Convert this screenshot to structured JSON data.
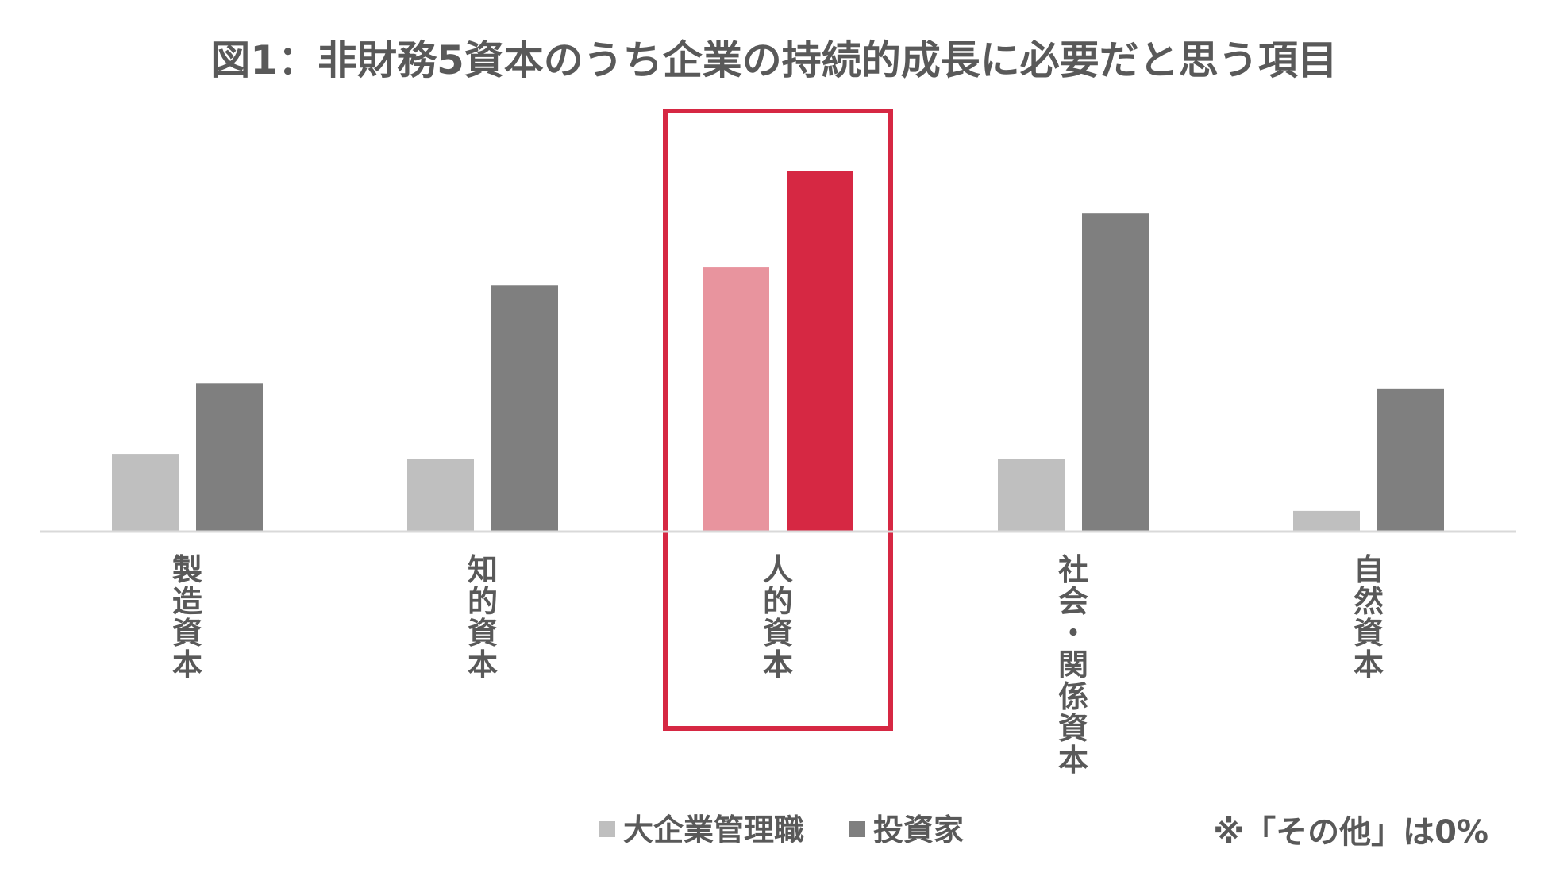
{
  "colors": {
    "series1": "#bfbfbf",
    "series2": "#7f7f7f",
    "highlight_series1": "#e8949e",
    "highlight_series2": "#d62843",
    "highlight_box": "#d62843",
    "axis": "#d9d9d9",
    "text": "#595959"
  },
  "chart_data": {
    "type": "bar",
    "title": "図1：非財務5資本のうち企業の持続的成長に必要だと思う項目",
    "categories": [
      "製造資本",
      "知的資本",
      "人的資本",
      "社会・関係資本",
      "自然資本"
    ],
    "series": [
      {
        "name": "大企業管理職",
        "values": [
          7.5,
          7.0,
          25.5,
          7.0,
          2.0
        ]
      },
      {
        "name": "投資家",
        "values": [
          14.3,
          23.8,
          34.8,
          30.7,
          13.8
        ]
      }
    ],
    "ylim": [
      0,
      36
    ],
    "highlight_category": "人的資本",
    "legend_position": "bottom",
    "grid": false,
    "xlabel": "",
    "ylabel": "",
    "footnote": "※「その他」は0%"
  }
}
